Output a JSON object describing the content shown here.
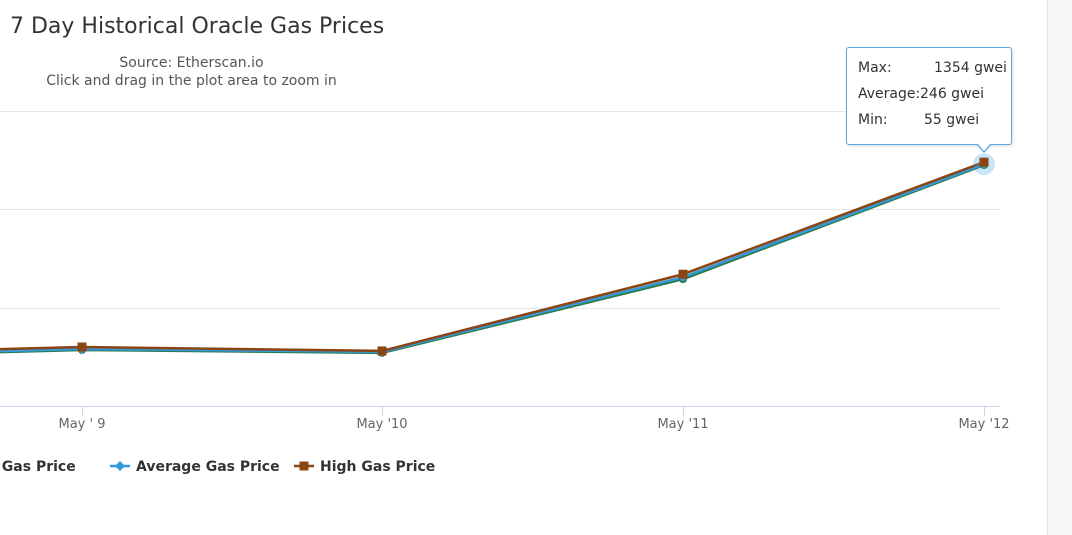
{
  "title": "7 Day Historical Oracle Gas Prices",
  "subtitle": {
    "source": "Source: Etherscan.io",
    "hint": "Click and drag in the plot area to zoom in"
  },
  "colors": {
    "low": "#2b7a4b",
    "average": "#3498db",
    "high": "#8b4513",
    "grid": "#e6e6e6",
    "axis": "#ccd6eb",
    "tooltip_border": "#5ba8e0"
  },
  "tooltip": {
    "rows": [
      {
        "key": "Max:",
        "value": "1354 gwei"
      },
      {
        "key": "Average:",
        "value": "246 gwei"
      },
      {
        "key": "Min:",
        "value": "55 gwei"
      }
    ]
  },
  "chart_data": {
    "type": "line",
    "title": "7 Day Historical Oracle Gas Prices",
    "subtitle": [
      "Source: Etherscan.io",
      "Click and drag in the plot area to zoom in"
    ],
    "categories": [
      "May ' 9",
      "May '10",
      "May '11",
      "May '12"
    ],
    "series": [
      {
        "name": "Low Gas Price",
        "marker": "circle",
        "values": [
          57,
          54,
          129,
          245
        ]
      },
      {
        "name": "Average Gas Price",
        "marker": "diamond",
        "values": [
          58,
          55,
          131,
          246
        ]
      },
      {
        "name": "High Gas Price",
        "marker": "square",
        "values": [
          60,
          56,
          134,
          248
        ]
      }
    ],
    "legend_visible_labels": [
      "w Gas Price",
      "Average Gas Price",
      "High Gas Price"
    ],
    "ylim": [
      0,
      300
    ],
    "grid": true,
    "legend": "bottom"
  }
}
